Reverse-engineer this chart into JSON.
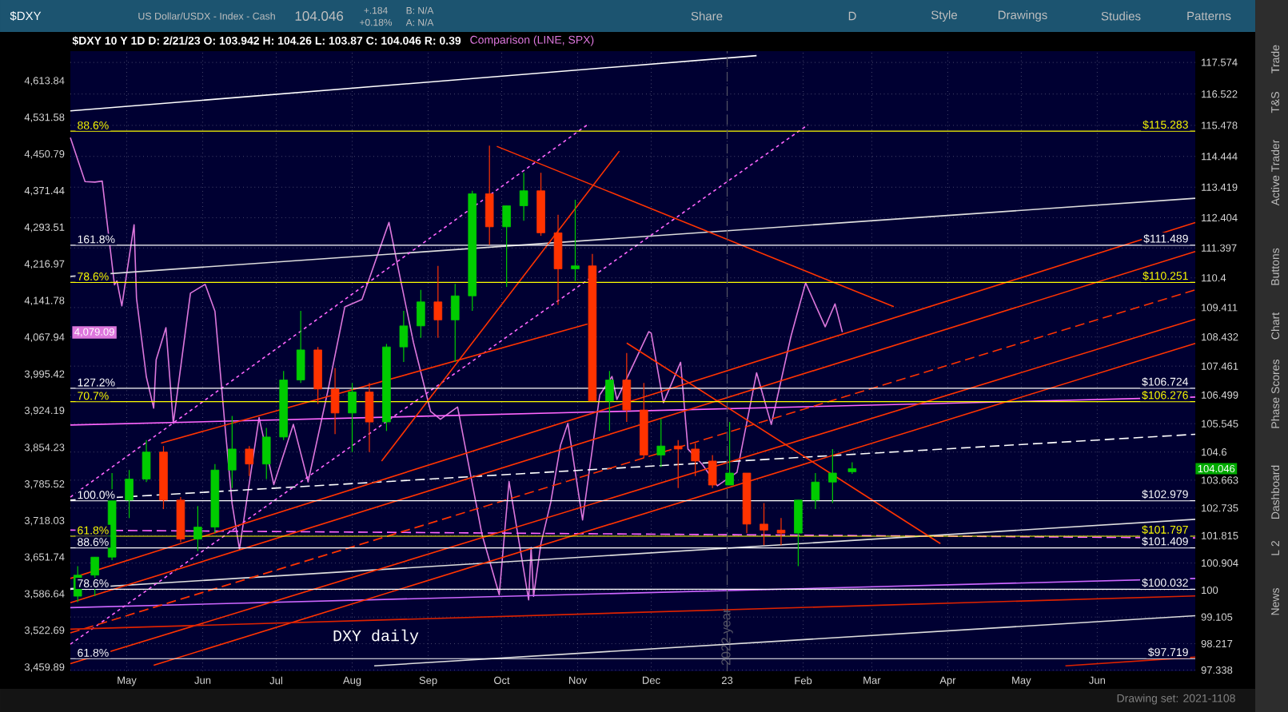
{
  "chart_data": {
    "type": "candlestick",
    "title": "$DXY 10 Y 1D D: 2/21/23 O: 103.942 H: 104.26 L: 103.87 C: 104.046 R: 0.39",
    "annotations": [
      "DXY daily",
      "$DXY",
      "US Dollar/USDX - Index - Cash",
      "104.046",
      "+.184",
      "+0.18%",
      "B: N/A",
      "A: N/A",
      "Share",
      "D",
      "Style",
      "Drawings",
      "Studies",
      "Patterns",
      "Trade",
      "T&S",
      "Active Trader",
      "Buttons",
      "Chart",
      "Phase Scores",
      "Dashboard",
      "L 2",
      "News",
      "Drawing set: 2021-1108",
      "88.6%",
      "161.8%",
      "78.6%",
      "127.2%",
      "70.7%",
      "100.0%",
      "61.8%",
      "88.6%",
      "78.6%",
      "61.8%",
      "4,079.09"
    ],
    "xlim": [
      "2022-04-08",
      "2023-07-11"
    ],
    "xticks": [
      {
        "value": "2022-05-01",
        "label": "May"
      },
      {
        "value": "2022-06-01",
        "label": "Jun"
      },
      {
        "value": "2022-07-01",
        "label": "Jul"
      },
      {
        "value": "2022-08-01",
        "label": "Aug"
      },
      {
        "value": "2022-09-01",
        "label": "Sep"
      },
      {
        "value": "2022-10-01",
        "label": "Oct"
      },
      {
        "value": "2022-11-01",
        "label": "Nov"
      },
      {
        "value": "2022-12-01",
        "label": "Dec"
      },
      {
        "value": "2023-01-01",
        "label": "23"
      },
      {
        "value": "2023-02-01",
        "label": "Feb"
      },
      {
        "value": "2023-03-01",
        "label": "Mar"
      },
      {
        "value": "2023-04-01",
        "label": "Apr"
      },
      {
        "value": "2023-05-01",
        "label": "May"
      },
      {
        "value": "2023-06-01",
        "label": "Jun"
      }
    ],
    "ylim": [
      3454,
      4683
    ],
    "yticks": [
      {
        "value": 3459.89,
        "label": "3,459.89"
      },
      {
        "value": 3522.69,
        "label": "3,522.69"
      },
      {
        "value": 3586.64,
        "label": "3,586.64"
      },
      {
        "value": 3651.74,
        "label": "3,651.74"
      },
      {
        "value": 3718.03,
        "label": "3,718.03"
      },
      {
        "value": 3785.52,
        "label": "3,785.52"
      },
      {
        "value": 3854.23,
        "label": "3,854.23"
      },
      {
        "value": 3924.19,
        "label": "3,924.19"
      },
      {
        "value": 3995.42,
        "label": "3,995.42"
      },
      {
        "value": 4067.94,
        "label": "4,067.94"
      },
      {
        "value": 4141.78,
        "label": "4,141.78"
      },
      {
        "value": 4216.97,
        "label": "4,216.97"
      },
      {
        "value": 4293.51,
        "label": "4,293.51"
      },
      {
        "value": 4371.44,
        "label": "4,371.44"
      },
      {
        "value": 4450.79,
        "label": "4,450.79"
      },
      {
        "value": 4531.58,
        "label": "4,531.58"
      },
      {
        "value": 4613.84,
        "label": "4,613.84"
      }
    ],
    "y2lim": [
      97.3,
      117.95
    ],
    "y2ticks": [
      97.338,
      98.217,
      99.105,
      100,
      100.904,
      101.815,
      102.735,
      103.663,
      104.6,
      105.545,
      106.499,
      107.461,
      108.432,
      109.411,
      110.4,
      111.397,
      112.404,
      113.419,
      114.444,
      115.478,
      116.522,
      117.574
    ],
    "log": "y",
    "grid": true,
    "ref_lines": [
      {
        "axis": "y2",
        "value": 115.283,
        "label": "$115.283",
        "color": "#ffff00"
      },
      {
        "axis": "y2",
        "value": 111.489,
        "label": "$111.489",
        "color": "#ffffff"
      },
      {
        "axis": "y2",
        "value": 110.251,
        "label": "$110.251",
        "color": "#ffff00"
      },
      {
        "axis": "y2",
        "value": 106.724,
        "label": "$106.724",
        "color": "#ffffff"
      },
      {
        "axis": "y2",
        "value": 106.276,
        "label": "$106.276",
        "color": "#ffff00"
      },
      {
        "axis": "y2",
        "value": 102.979,
        "label": "$102.979",
        "color": "#ffffff"
      },
      {
        "axis": "y2",
        "value": 101.797,
        "label": "$101.797",
        "color": "#ffff00"
      },
      {
        "axis": "y2",
        "value": 101.409,
        "label": "$101.409",
        "color": "#ffffff"
      },
      {
        "axis": "y2",
        "value": 100.032,
        "label": "$100.032",
        "color": "#ffffff"
      },
      {
        "axis": "y2",
        "value": 97.719,
        "label": "$97.719",
        "color": "#ffffff"
      },
      {
        "axis": "x",
        "value": "2023-01-01",
        "label": "2022 year",
        "color": "#555566",
        "line_style": "dashed"
      }
    ],
    "series": [
      {
        "type": "line",
        "name": "Comparison (LINE, SPX)",
        "axis": "y",
        "color": "#dd77dd",
        "x": [
          "2022-04-08",
          "2022-04-14",
          "2022-04-18",
          "2022-04-21",
          "2022-04-22",
          "2022-04-26",
          "2022-04-27",
          "2022-04-29",
          "2022-05-04",
          "2022-05-05",
          "2022-05-09",
          "2022-05-12",
          "2022-05-13",
          "2022-05-17",
          "2022-05-20",
          "2022-05-27",
          "2022-06-02",
          "2022-06-06",
          "2022-06-10",
          "2022-06-13",
          "2022-06-16",
          "2022-06-24",
          "2022-06-30",
          "2022-07-08",
          "2022-07-14",
          "2022-07-22",
          "2022-07-26",
          "2022-07-29",
          "2022-08-05",
          "2022-08-16",
          "2022-08-19",
          "2022-08-26",
          "2022-09-02",
          "2022-09-06",
          "2022-09-12",
          "2022-09-13",
          "2022-09-23",
          "2022-09-30",
          "2022-10-04",
          "2022-10-12",
          "2022-10-13",
          "2022-10-14",
          "2022-10-17",
          "2022-10-21",
          "2022-10-25",
          "2022-10-28",
          "2022-11-03",
          "2022-11-10",
          "2022-11-15",
          "2022-11-17",
          "2022-11-21",
          "2022-11-30",
          "2022-12-01",
          "2022-12-06",
          "2022-12-13",
          "2022-12-16",
          "2022-12-22",
          "2022-12-28",
          "2023-01-05",
          "2023-01-13",
          "2023-01-19",
          "2023-01-27",
          "2023-02-02",
          "2023-02-10",
          "2023-02-14",
          "2023-02-17"
        ],
        "values": [
          4488,
          4392,
          4391,
          4393,
          null,
          4175,
          4183,
          4132,
          4300,
          4147,
          3991,
          3930,
          4024,
          4088,
          3901,
          4158,
          4176,
          4121,
          3901,
          3750,
          3667,
          3912,
          3785,
          3899,
          3790,
          3962,
          null,
          4130,
          4145,
          4305,
          4228,
          4058,
          3924,
          3909,
          null,
          3932,
          3693,
          3586,
          3791,
          3577,
          3670,
          3583,
          3677,
          3752,
          3859,
          3901,
          3720,
          3956,
          3992,
          3947,
          null,
          4080,
          4077,
          3941,
          4019,
          3852,
          3822,
          3783,
          3808,
          3999,
          3899,
          4070,
          4179,
          4090,
          4136,
          4079.09
        ]
      },
      {
        "type": "line",
        "axis": "y2",
        "color": "#ffffff",
        "x": [
          "2022-04-08",
          "2023-01-13"
        ],
        "values": [
          115.96,
          117.8
        ]
      },
      {
        "type": "line",
        "axis": "y2",
        "color": "#dddddd",
        "x": [
          "2022-04-08",
          "2023-07-11"
        ],
        "values": [
          110.45,
          113.05
        ]
      },
      {
        "type": "line",
        "axis": "y2",
        "color": "#dddddd",
        "x": [
          "2022-04-08",
          "2023-07-11"
        ],
        "values": [
          100.05,
          102.36
        ]
      },
      {
        "type": "line",
        "axis": "y2",
        "color": "#dddddd",
        "x": [
          "2022-08-10",
          "2023-07-11"
        ],
        "values": [
          97.48,
          99.15
        ]
      },
      {
        "type": "line",
        "axis": "y2",
        "color": "#ffffff",
        "line_style": "dashed",
        "x": [
          "2022-04-08",
          "2023-07-11"
        ],
        "values": [
          103.0,
          105.19
        ]
      },
      {
        "type": "line",
        "axis": "y2",
        "color": "#ff66ff",
        "x": [
          "2022-04-08",
          "2023-07-11"
        ],
        "values": [
          105.5,
          106.43
        ]
      },
      {
        "type": "line",
        "axis": "y2",
        "color": "#ff66ff",
        "line_style": "dashed",
        "x": [
          "2022-04-08",
          "2023-07-11"
        ],
        "values": [
          102.0,
          101.74
        ]
      },
      {
        "type": "line",
        "axis": "y2",
        "color": "#cc66ff",
        "x": [
          "2022-04-08",
          "2023-07-11"
        ],
        "values": [
          99.42,
          100.39
        ]
      },
      {
        "type": "line",
        "axis": "y2",
        "color": "#ff66ff",
        "line_style": "dotted",
        "x": [
          "2022-04-08",
          "2022-11-05"
        ],
        "values": [
          103.1,
          115.5
        ]
      },
      {
        "type": "line",
        "axis": "y2",
        "color": "#ff66ff",
        "line_style": "dotted",
        "x": [
          "2022-04-08",
          "2023-02-03"
        ],
        "values": [
          98.2,
          115.5
        ]
      },
      {
        "type": "line",
        "axis": "y2",
        "color": "#ff3300",
        "x": [
          "2022-04-08",
          "2023-07-11"
        ],
        "values": [
          100.39,
          112.24
        ]
      },
      {
        "type": "line",
        "axis": "y2",
        "color": "#ff3300",
        "x": [
          "2022-04-08",
          "2023-07-11"
        ],
        "values": [
          99.58,
          111.28
        ]
      },
      {
        "type": "line",
        "axis": "y2",
        "color": "#ff3300",
        "line_style": "dashed",
        "x": [
          "2022-04-08",
          "2023-07-11"
        ],
        "values": [
          98.58,
          110.0
        ]
      },
      {
        "type": "line",
        "axis": "y2",
        "color": "#ff3300",
        "x": [
          "2022-04-08",
          "2023-07-11"
        ],
        "values": [
          97.55,
          109.02
        ]
      },
      {
        "type": "line",
        "axis": "y2",
        "color": "#ff3300",
        "x": [
          "2022-05-12",
          "2023-07-11"
        ],
        "values": [
          97.5,
          108.22
        ]
      },
      {
        "type": "line",
        "axis": "y2",
        "color": "#dd2200",
        "x": [
          "2022-04-08",
          "2023-07-11"
        ],
        "values": [
          98.7,
          99.81
        ]
      },
      {
        "type": "line",
        "axis": "y2",
        "color": "#dd2200",
        "x": [
          "2023-05-19",
          "2023-07-11"
        ],
        "values": [
          97.48,
          97.77
        ]
      },
      {
        "type": "line",
        "axis": "y2",
        "color": "#ff3300",
        "x": [
          "2022-08-13",
          "2022-11-18"
        ],
        "values": [
          104.3,
          114.62
        ]
      },
      {
        "type": "line",
        "axis": "y2",
        "color": "#ff3300",
        "x": [
          "2022-09-29",
          "2023-03-10"
        ],
        "values": [
          114.78,
          109.44
        ]
      },
      {
        "type": "line",
        "axis": "y2",
        "color": "#ff3300",
        "x": [
          "2022-05-15",
          "2022-11-05"
        ],
        "values": [
          104.9,
          108.86
        ]
      },
      {
        "type": "line",
        "axis": "y2",
        "color": "#ff3300",
        "x": [
          "2022-11-21",
          "2023-03-29"
        ],
        "values": [
          108.23,
          101.55
        ]
      },
      {
        "axis": "y2",
        "x": [
          "2022-04-11",
          "2022-04-18",
          "2022-04-25",
          "2022-05-02",
          "2022-05-09",
          "2022-05-16",
          "2022-05-23",
          "2022-05-30",
          "2022-06-06",
          "2022-06-13",
          "2022-06-20",
          "2022-06-27",
          "2022-07-04",
          "2022-07-11",
          "2022-07-18",
          "2022-07-25",
          "2022-08-01",
          "2022-08-08",
          "2022-08-15",
          "2022-08-22",
          "2022-08-29",
          "2022-09-05",
          "2022-09-12",
          "2022-09-19",
          "2022-09-26",
          "2022-10-03",
          "2022-10-10",
          "2022-10-17",
          "2022-10-24",
          "2022-10-31",
          "2022-11-07",
          "2022-11-14",
          "2022-11-21",
          "2022-11-28",
          "2022-12-05",
          "2022-12-12",
          "2022-12-19",
          "2022-12-26",
          "2023-01-02",
          "2023-01-09",
          "2023-01-16",
          "2023-01-23",
          "2023-01-30",
          "2023-02-06",
          "2023-02-13",
          "2023-02-21"
        ],
        "ohlc": [
          [
            99.8,
            100.8,
            99.6,
            100.5
          ],
          [
            100.5,
            101.1,
            99.8,
            101.1
          ],
          [
            101.1,
            103.9,
            101.0,
            103.0
          ],
          [
            103.0,
            104.0,
            102.4,
            103.7
          ],
          [
            103.7,
            105.0,
            103.6,
            104.6
          ],
          [
            104.6,
            104.8,
            102.7,
            103.0
          ],
          [
            103.0,
            103.1,
            101.6,
            101.7
          ],
          [
            101.7,
            102.8,
            101.3,
            102.1
          ],
          [
            102.1,
            104.2,
            101.9,
            104.0
          ],
          [
            104.0,
            105.8,
            103.4,
            104.7
          ],
          [
            104.7,
            104.8,
            103.8,
            104.2
          ],
          [
            104.2,
            105.4,
            103.7,
            105.1
          ],
          [
            105.1,
            107.3,
            105.0,
            107.0
          ],
          [
            107.0,
            109.3,
            106.9,
            108.0
          ],
          [
            108.0,
            108.1,
            106.2,
            106.7
          ],
          [
            106.7,
            107.4,
            105.2,
            105.9
          ],
          [
            105.9,
            106.9,
            104.6,
            106.6
          ],
          [
            106.6,
            106.9,
            104.6,
            105.6
          ],
          [
            105.6,
            108.2,
            105.3,
            108.1
          ],
          [
            108.1,
            109.3,
            107.6,
            108.8
          ],
          [
            108.8,
            110.0,
            108.4,
            109.6
          ],
          [
            109.6,
            110.8,
            108.4,
            109.0
          ],
          [
            109.0,
            110.2,
            107.6,
            109.8
          ],
          [
            109.8,
            113.3,
            109.3,
            113.2
          ],
          [
            113.2,
            114.8,
            111.5,
            112.1
          ],
          [
            112.1,
            112.8,
            110.1,
            112.8
          ],
          [
            112.8,
            113.9,
            112.3,
            113.3
          ],
          [
            113.3,
            113.9,
            111.8,
            111.9
          ],
          [
            111.9,
            112.5,
            109.5,
            110.7
          ],
          [
            110.7,
            113.0,
            110.3,
            110.8
          ],
          [
            110.8,
            111.2,
            106.3,
            106.3
          ],
          [
            106.3,
            107.3,
            105.3,
            107.0
          ],
          [
            107.0,
            107.9,
            105.6,
            106.0
          ],
          [
            106.0,
            106.9,
            104.4,
            104.5
          ],
          [
            104.5,
            105.7,
            104.1,
            104.8
          ],
          [
            104.8,
            105.0,
            103.4,
            104.7
          ],
          [
            104.7,
            104.9,
            103.8,
            104.3
          ],
          [
            104.3,
            104.5,
            103.4,
            103.5
          ],
          [
            103.5,
            105.6,
            103.5,
            103.9
          ],
          [
            103.9,
            103.9,
            101.9,
            102.2
          ],
          [
            102.2,
            102.9,
            101.5,
            102.0
          ],
          [
            102.0,
            102.4,
            101.5,
            101.9
          ],
          [
            101.9,
            103.0,
            100.8,
            103.0
          ],
          [
            103.0,
            103.9,
            102.7,
            103.6
          ],
          [
            103.6,
            104.7,
            102.9,
            103.9
          ],
          [
            103.942,
            104.26,
            103.87,
            104.046
          ]
        ],
        "colors": [
          "#00cc00",
          "#00cc00",
          "#00cc00",
          "#00cc00",
          "#00cc00",
          "#ff3300",
          "#ff3300",
          "#00cc00",
          "#00cc00",
          "#00cc00",
          "#ff3300",
          "#00cc00",
          "#00cc00",
          "#00cc00",
          "#ff3300",
          "#ff3300",
          "#00cc00",
          "#ff3300",
          "#00cc00",
          "#00cc00",
          "#00cc00",
          "#ff3300",
          "#00cc00",
          "#00cc00",
          "#ff3300",
          "#00cc00",
          "#00cc00",
          "#ff3300",
          "#ff3300",
          "#00cc00",
          "#ff3300",
          "#00cc00",
          "#ff3300",
          "#ff3300",
          "#00cc00",
          "#ff3300",
          "#ff3300",
          "#ff3300",
          "#00cc00",
          "#ff3300",
          "#ff3300",
          "#ff3300",
          "#00cc00",
          "#00cc00",
          "#00cc00",
          "#00cc00"
        ],
        "value_labels": [
          null,
          null,
          null,
          null,
          null,
          null,
          null,
          null,
          null,
          null,
          null,
          null,
          null,
          null,
          null,
          null,
          null,
          null,
          null,
          null,
          null,
          null,
          null,
          null,
          null,
          null,
          null,
          null,
          null,
          null,
          null,
          null,
          null,
          null,
          null,
          null,
          null,
          null,
          null,
          null,
          null,
          null,
          null,
          null,
          null,
          "104.046"
        ]
      }
    ]
  }
}
